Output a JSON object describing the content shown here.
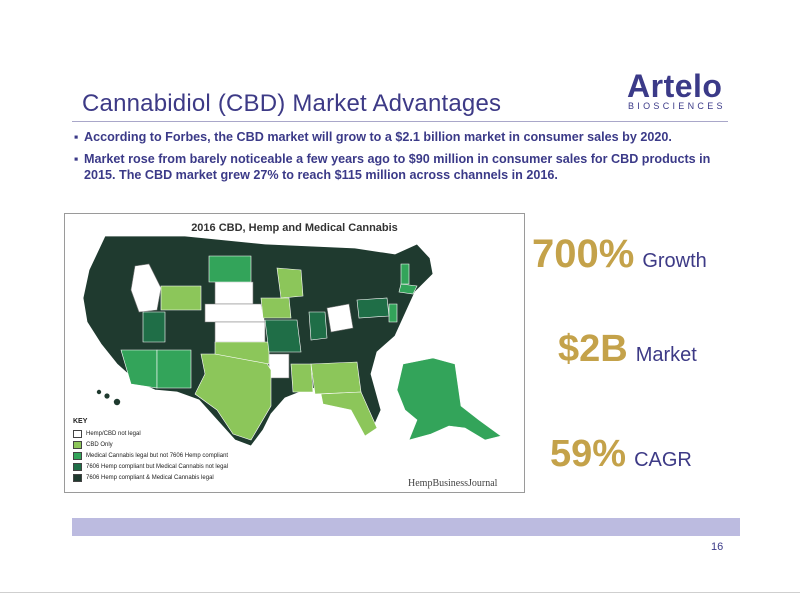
{
  "slide": {
    "title": "Cannabidiol (CBD) Market Advantages",
    "logo": {
      "name": "Artelo",
      "subtitle": "BIOSCIENCES"
    },
    "bullets": [
      "According to Forbes, the CBD market will grow to a $2.1 billion market in consumer sales by 2020.",
      "Market rose from barely noticeable a few years ago to $90 million in consumer sales for CBD products in 2015.  The CBD market grew 27% to reach $115 million across channels in 2016."
    ],
    "bullet_marker": "▪",
    "stats": [
      {
        "value": "700%",
        "label": "Growth"
      },
      {
        "value": "$2B",
        "label": "Market"
      },
      {
        "value": "59%",
        "label": "CAGR"
      }
    ],
    "page_number": "16"
  },
  "map": {
    "title": "2016 CBD, Hemp and Medical Cannabis",
    "credit": "HempBusinessJournal",
    "key_title": "KEY",
    "key": [
      {
        "label": "Hemp/CBD not legal",
        "color": "#ffffff"
      },
      {
        "label": "CBD Only",
        "color": "#8cc65a"
      },
      {
        "label": "Medical Cannabis legal but not 7606 Hemp compliant",
        "color": "#33a45a"
      },
      {
        "label": "7606 Hemp compliant but Medical Cannabis not legal",
        "color": "#1f6e47"
      },
      {
        "label": "7606 Hemp compliant & Medical Cannabis legal",
        "color": "#1f3a2f"
      }
    ]
  },
  "colors": {
    "brand": "#3b3a88",
    "accent_gold": "#c4a24a",
    "band": "#bcbbe0"
  }
}
